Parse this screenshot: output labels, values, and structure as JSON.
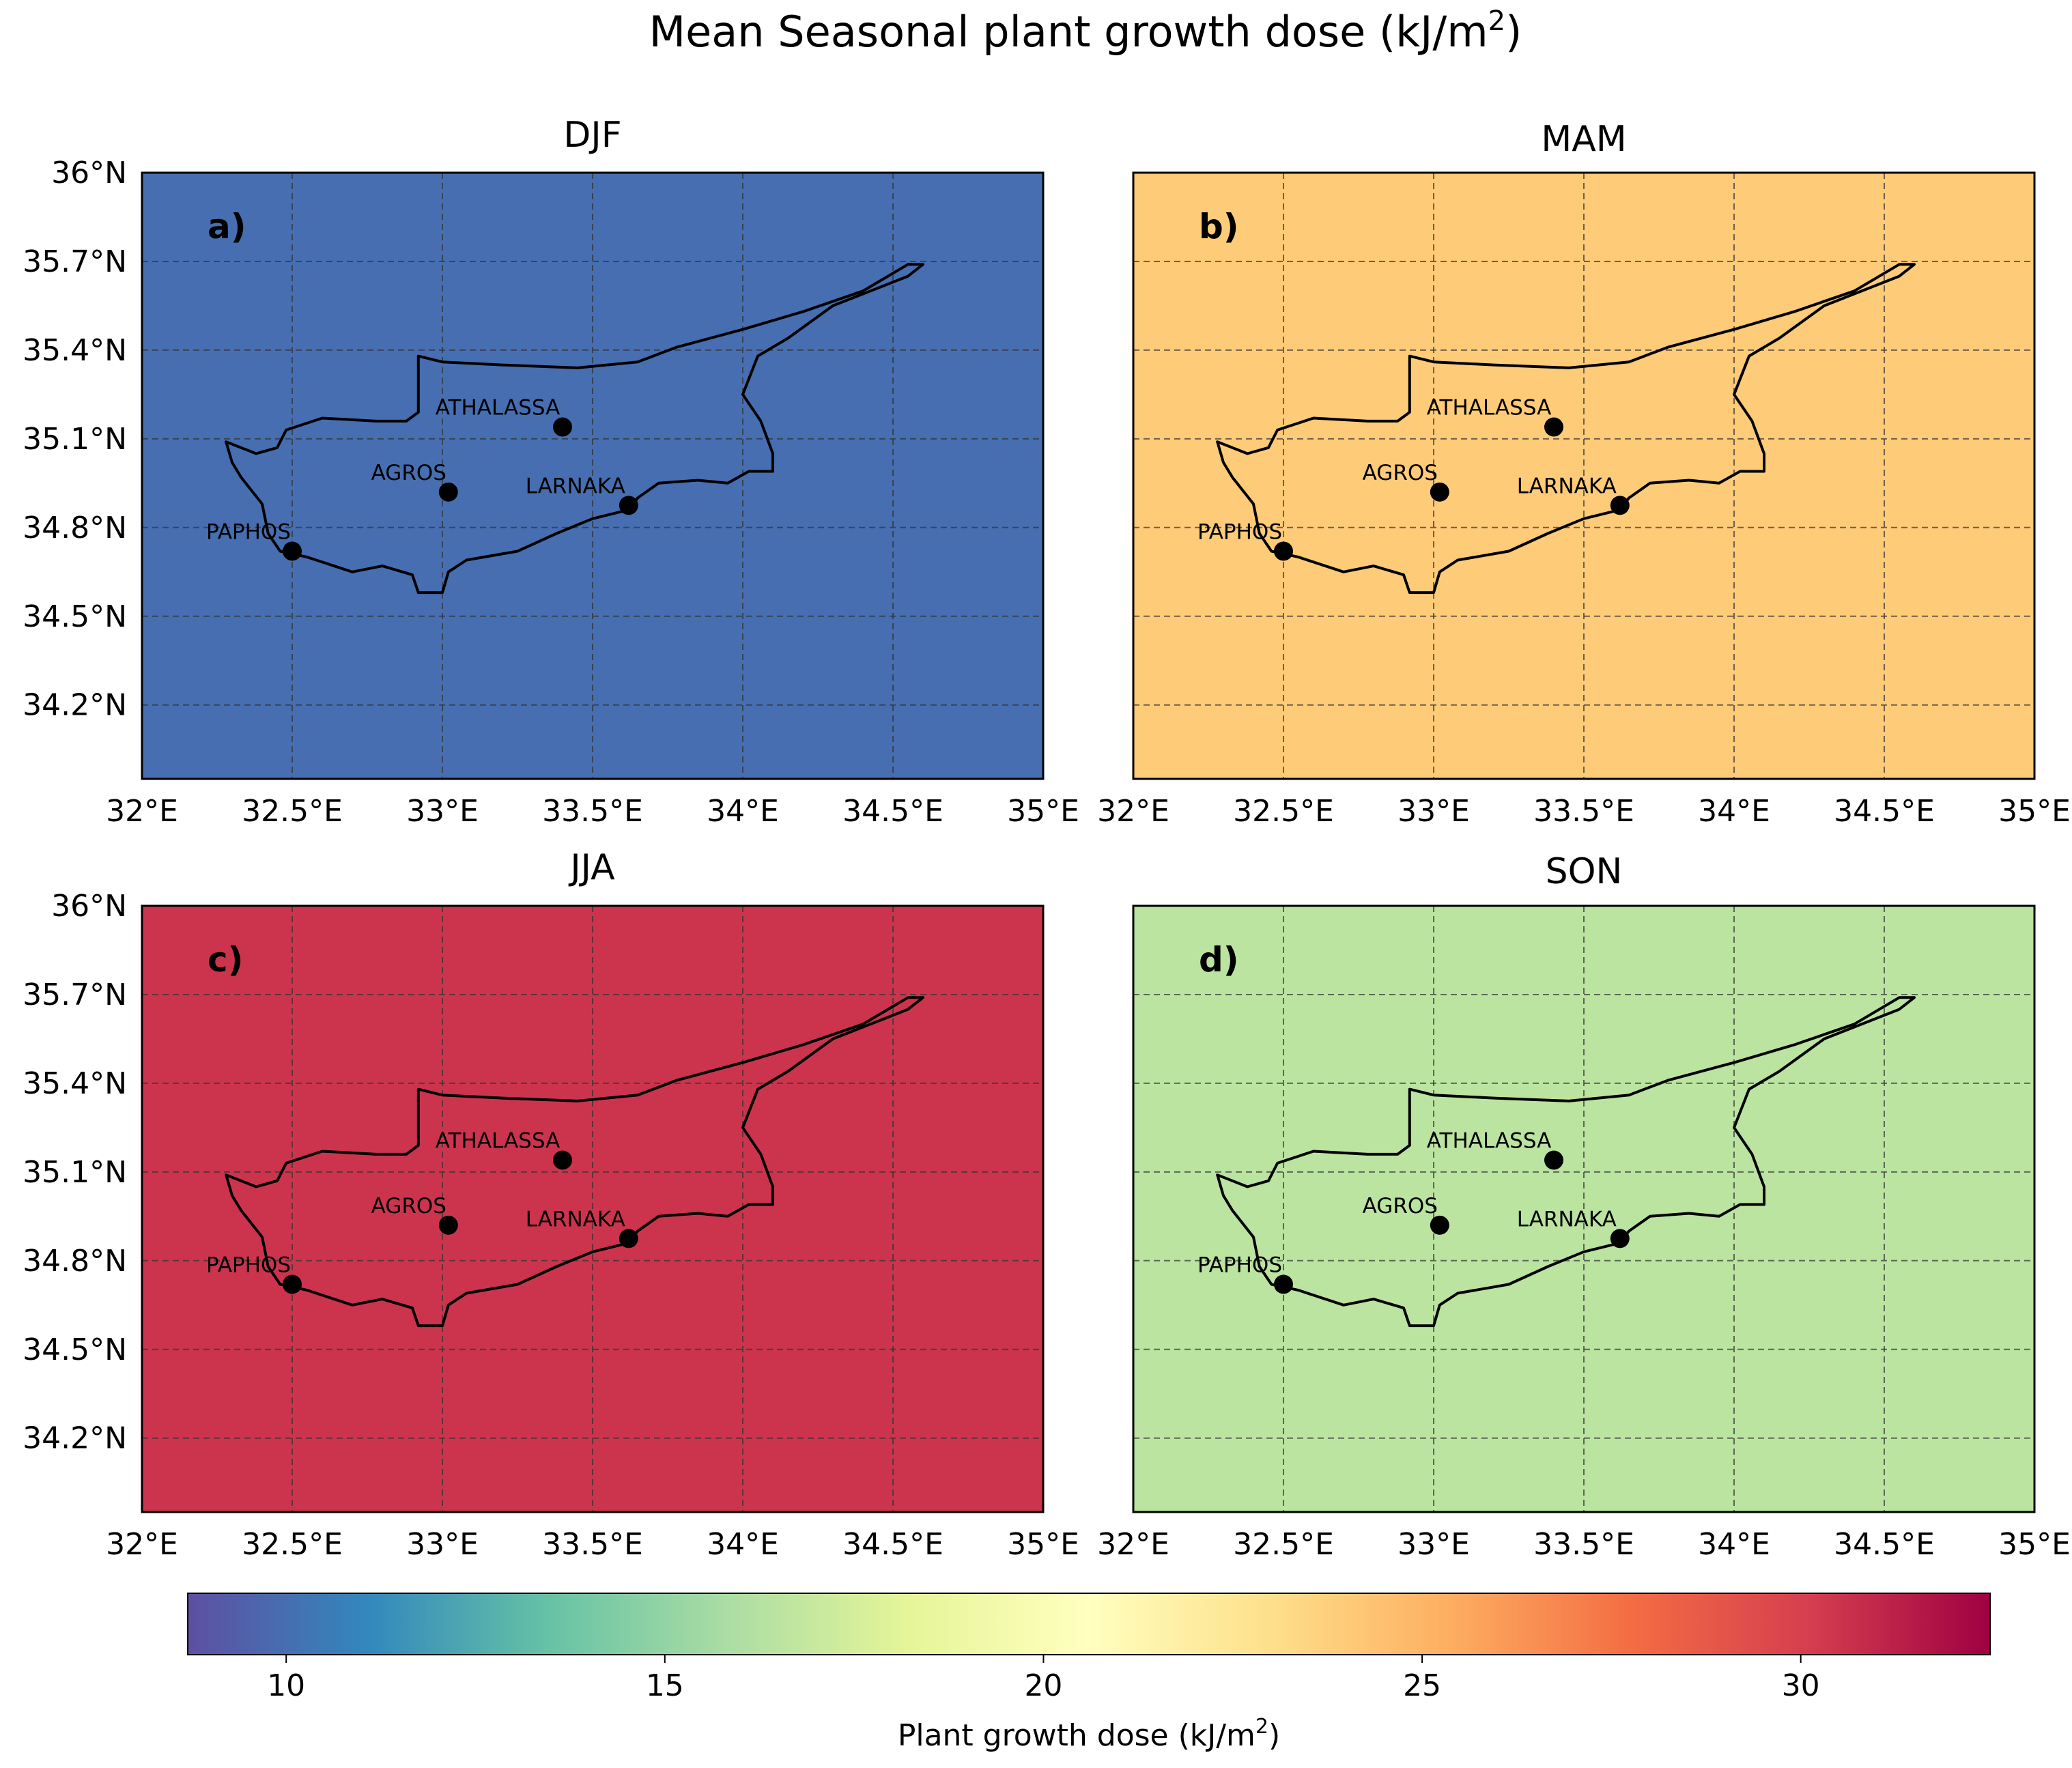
{
  "figure": {
    "title_main": "Mean Seasonal plant growth dose (kJ/m",
    "title_sup": "2",
    "title_close": ")"
  },
  "chart_data": {
    "type": "heatmap",
    "x_axis": {
      "label": "",
      "ticks": [
        "32°E",
        "32.5°E",
        "33°E",
        "33.5°E",
        "34°E",
        "34.5°E",
        "35°E"
      ],
      "lim": [
        32.0,
        35.0
      ]
    },
    "y_axis": {
      "label": "",
      "ticks": [
        "36°N",
        "35.7°N",
        "35.4°N",
        "35.1°N",
        "34.8°N",
        "34.5°N",
        "34.2°N"
      ],
      "lim": [
        33.95,
        36.0
      ]
    },
    "grid": true,
    "stations": [
      {
        "name": "ATHALASSA",
        "lon": 33.4,
        "lat": 35.14
      },
      {
        "name": "AGROS",
        "lon": 33.02,
        "lat": 34.92
      },
      {
        "name": "LARNAKA",
        "lon": 33.62,
        "lat": 34.875
      },
      {
        "name": "PAPHOS",
        "lon": 32.5,
        "lat": 34.72
      }
    ],
    "panels": [
      {
        "letter": "a)",
        "season": "DJF",
        "base_value": 10.0
      },
      {
        "letter": "b)",
        "season": "MAM",
        "base_value": 24.0
      },
      {
        "letter": "c)",
        "season": "JJA",
        "base_value": 30.5
      },
      {
        "letter": "d)",
        "season": "SON",
        "base_value": 16.5
      }
    ],
    "colorbar": {
      "label_main": "Plant growth dose (kJ/m",
      "label_sup": "2",
      "label_close": ")",
      "range": [
        8.7,
        32.5
      ],
      "ticks": [
        10,
        15,
        20,
        25,
        30
      ],
      "colormap": "Spectral_r",
      "colors": [
        "#5e4fa2",
        "#3288bd",
        "#66c2a5",
        "#abdda4",
        "#e6f598",
        "#ffffbf",
        "#fee08b",
        "#fdae61",
        "#f46d43",
        "#d53e4f",
        "#9e0142"
      ]
    }
  }
}
